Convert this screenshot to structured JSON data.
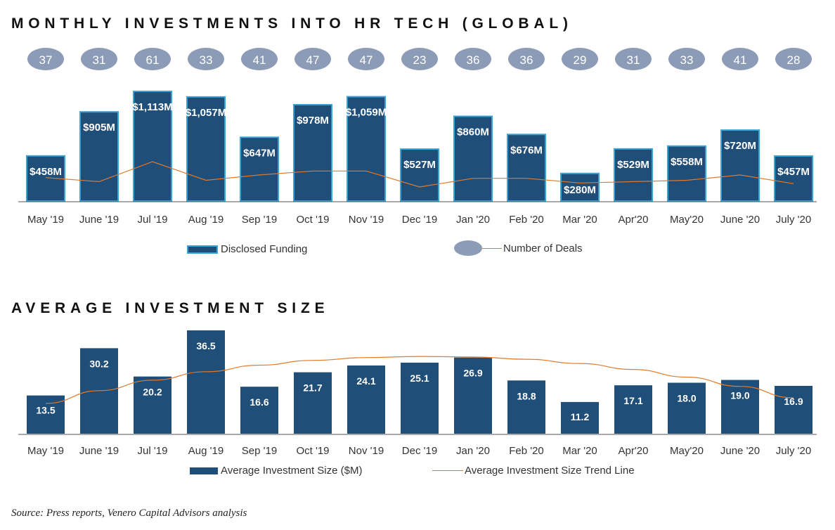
{
  "colors": {
    "bar": "#1f4e79",
    "bar_border": "#3aa3d4",
    "oval": "#8c9cb6",
    "trend": "#e07a2e",
    "label_text": "#ffffff"
  },
  "chart_data": [
    {
      "type": "bar",
      "title": "MONTHLY INVESTMENTS INTO HR TECH (GLOBAL)",
      "categories": [
        "May '19",
        "June '19",
        "Jul '19",
        "Aug '19",
        "Sep '19",
        "Oct '19",
        "Nov '19",
        "Dec '19",
        "Jan '20",
        "Feb '20",
        "Mar '20",
        "Apr'20",
        "May'20",
        "June '20",
        "July '20"
      ],
      "series": [
        {
          "name": "Disclosed Funding",
          "type": "bar",
          "values": [
            458,
            905,
            1113,
            1057,
            647,
            978,
            1059,
            527,
            860,
            676,
            280,
            529,
            558,
            720,
            457
          ],
          "labels": [
            "$458M",
            "$905M",
            "$1,113M",
            "$1,057M",
            "$647M",
            "$978M",
            "$1,059M",
            "$527M",
            "$860M",
            "$676M",
            "$280M",
            "$529M",
            "$558M",
            "$720M",
            "$457M"
          ]
        },
        {
          "name": "Number of Deals",
          "type": "line",
          "values": [
            37,
            31,
            61,
            33,
            41,
            47,
            47,
            23,
            36,
            36,
            29,
            31,
            33,
            41,
            28
          ],
          "labels": [
            "37",
            "31",
            "61",
            "33",
            "41",
            "47",
            "47",
            "23",
            "36",
            "36",
            "29",
            "31",
            "33",
            "41",
            "28"
          ]
        }
      ],
      "ylim": [
        0,
        1150
      ],
      "legend": [
        "Disclosed Funding",
        "Number of Deals"
      ],
      "legend_position": "bottom",
      "grid": false
    },
    {
      "type": "bar",
      "title": "AVERAGE INVESTMENT SIZE",
      "categories": [
        "May '19",
        "June '19",
        "Jul '19",
        "Aug '19",
        "Sep '19",
        "Oct '19",
        "Nov '19",
        "Dec '19",
        "Jan '20",
        "Feb '20",
        "Mar '20",
        "Apr'20",
        "May'20",
        "June '20",
        "July '20"
      ],
      "series": [
        {
          "name": "Average Investment Size ($M)",
          "type": "bar",
          "values": [
            13.5,
            30.2,
            20.2,
            36.5,
            16.6,
            21.7,
            24.1,
            25.1,
            26.9,
            18.8,
            11.2,
            17.1,
            18.0,
            19.0,
            16.9
          ],
          "labels": [
            "13.5",
            "30.2",
            "20.2",
            "36.5",
            "16.6",
            "21.7",
            "24.1",
            "25.1",
            "26.9",
            "18.8",
            "11.2",
            "17.1",
            "18.0",
            "19.0",
            "16.9"
          ]
        },
        {
          "name": "Average Investment Size Trend Line",
          "type": "trend",
          "values": [
            10.7,
            15.2,
            18.9,
            21.9,
            24.2,
            25.9,
            26.9,
            27.3,
            27.1,
            26.3,
            24.8,
            22.7,
            20.0,
            16.7,
            12.7
          ]
        }
      ],
      "ylim": [
        0,
        38
      ],
      "legend": [
        "Average Investment Size ($M)",
        "Average Investment Size Trend Line"
      ],
      "legend_position": "bottom",
      "grid": false
    }
  ],
  "footer": {
    "source": "Source: Press reports, Venero Capital Advisors analysis"
  }
}
